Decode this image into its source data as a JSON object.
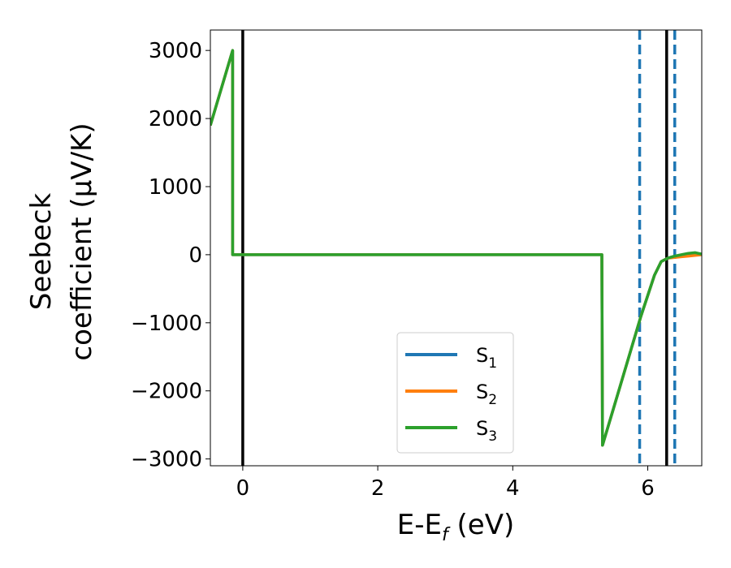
{
  "chart_data": {
    "type": "line",
    "title": "",
    "xlabel": "E-E$_f$ (eV)",
    "xlabel_parts": {
      "base": "E-E",
      "sub": "f",
      "rest": " (eV)"
    },
    "ylabel_lines": [
      "Seebeck",
      "coefficient  (μV/K)"
    ],
    "xlim": [
      -0.48,
      6.8
    ],
    "ylim": [
      -3100,
      3300
    ],
    "x_ticks": [
      0,
      2,
      4,
      6
    ],
    "x_tick_labels": [
      "0",
      "2",
      "4",
      "6"
    ],
    "y_ticks": [
      3000,
      2000,
      1000,
      0,
      -1000,
      -2000,
      -3000
    ],
    "y_tick_labels": [
      "3000",
      "2000",
      "1000",
      "0",
      "−1000",
      "−2000",
      "−3000"
    ],
    "grid": false,
    "legend_position": "lower-center",
    "series": [
      {
        "name": "S1",
        "legend_base": "S",
        "legend_sub": "1",
        "color": "#1f77b4",
        "x": [
          -0.48,
          -0.15,
          -0.15,
          5.32,
          5.33,
          5.6,
          5.9,
          6.1,
          6.2,
          6.3,
          6.4,
          6.5,
          6.6,
          6.7,
          6.8
        ],
        "y": [
          1900,
          3000,
          0,
          0,
          -2800,
          -1900,
          -900,
          -300,
          -100,
          -50,
          -20,
          -10,
          0,
          10,
          0
        ]
      },
      {
        "name": "S2",
        "legend_base": "S",
        "legend_sub": "2",
        "color": "#ff7f0e",
        "x": [
          -0.48,
          -0.15,
          -0.15,
          5.32,
          5.33,
          5.6,
          5.9,
          6.1,
          6.2,
          6.3,
          6.4,
          6.5,
          6.6,
          6.7,
          6.8
        ],
        "y": [
          1900,
          3000,
          0,
          0,
          -2800,
          -1900,
          -900,
          -300,
          -100,
          -50,
          -40,
          -30,
          -20,
          -10,
          0
        ]
      },
      {
        "name": "S3",
        "legend_base": "S",
        "legend_sub": "3",
        "color": "#2ca02c",
        "x": [
          -0.48,
          -0.15,
          -0.15,
          5.32,
          5.33,
          5.6,
          5.9,
          6.1,
          6.2,
          6.3,
          6.4,
          6.5,
          6.6,
          6.7,
          6.8
        ],
        "y": [
          1900,
          3000,
          0,
          0,
          -2800,
          -1900,
          -900,
          -300,
          -100,
          -50,
          -20,
          0,
          20,
          30,
          10
        ]
      }
    ],
    "vlines_solid": [
      {
        "x": 0,
        "color": "#000000"
      },
      {
        "x": 6.28,
        "color": "#000000"
      }
    ],
    "vlines_dashed": [
      {
        "x": 5.88,
        "color": "#1f77b4"
      },
      {
        "x": 6.4,
        "color": "#1f77b4"
      }
    ]
  }
}
